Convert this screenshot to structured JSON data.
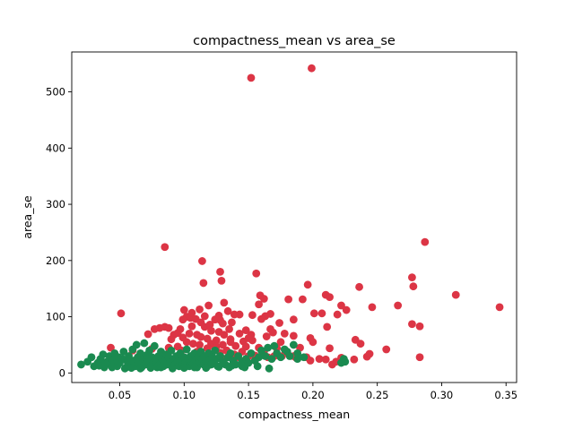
{
  "chart_data": {
    "type": "scatter",
    "title": "compactness_mean vs area_se",
    "xlabel": "compactness_mean",
    "ylabel": "area_se",
    "xlim": [
      0.0127,
      0.3582
    ],
    "ylim": [
      -17,
      571
    ],
    "xticks": [
      0.05,
      0.1,
      0.15,
      0.2,
      0.25,
      0.3,
      0.35
    ],
    "xtick_labels": [
      "0.05",
      "0.10",
      "0.15",
      "0.20",
      "0.25",
      "0.30",
      "0.35"
    ],
    "yticks": [
      0,
      100,
      200,
      300,
      400,
      500
    ],
    "ytick_labels": [
      "0",
      "100",
      "200",
      "300",
      "400",
      "500"
    ],
    "grid": false,
    "legend": false,
    "series": [
      {
        "color": "#dc3545",
        "points": [
          [
            0.199,
            542
          ],
          [
            0.152,
            525
          ],
          [
            0.287,
            233
          ],
          [
            0.085,
            224
          ],
          [
            0.114,
            199
          ],
          [
            0.128,
            180
          ],
          [
            0.156,
            177
          ],
          [
            0.277,
            170
          ],
          [
            0.129,
            164
          ],
          [
            0.115,
            160
          ],
          [
            0.196,
            157
          ],
          [
            0.278,
            154
          ],
          [
            0.236,
            153
          ],
          [
            0.311,
            139
          ],
          [
            0.21,
            139
          ],
          [
            0.159,
            138
          ],
          [
            0.213,
            135
          ],
          [
            0.192,
            131
          ],
          [
            0.181,
            131
          ],
          [
            0.162,
            132
          ],
          [
            0.119,
            120
          ],
          [
            0.131,
            125
          ],
          [
            0.158,
            122
          ],
          [
            0.222,
            120
          ],
          [
            0.266,
            120
          ],
          [
            0.345,
            117
          ],
          [
            0.246,
            117
          ],
          [
            0.226,
            112
          ],
          [
            0.1,
            112
          ],
          [
            0.112,
            113
          ],
          [
            0.134,
            110
          ],
          [
            0.143,
            104
          ],
          [
            0.139,
            104
          ],
          [
            0.167,
            105
          ],
          [
            0.051,
            106
          ],
          [
            0.201,
            106
          ],
          [
            0.207,
            106
          ],
          [
            0.219,
            104
          ],
          [
            0.153,
            103
          ],
          [
            0.127,
            102
          ],
          [
            0.116,
            101
          ],
          [
            0.163,
            101
          ],
          [
            0.102,
            100
          ],
          [
            0.105,
            98
          ],
          [
            0.109,
            96
          ],
          [
            0.099,
            95
          ],
          [
            0.124,
            95
          ],
          [
            0.128,
            94
          ],
          [
            0.137,
            90
          ],
          [
            0.16,
            96
          ],
          [
            0.185,
            95
          ],
          [
            0.277,
            87
          ],
          [
            0.283,
            83
          ],
          [
            0.211,
            82
          ],
          [
            0.174,
            89
          ],
          [
            0.081,
            80
          ],
          [
            0.085,
            82
          ],
          [
            0.088,
            80
          ],
          [
            0.077,
            78
          ],
          [
            0.097,
            78
          ],
          [
            0.106,
            83
          ],
          [
            0.116,
            82
          ],
          [
            0.135,
            78
          ],
          [
            0.148,
            76
          ],
          [
            0.167,
            78
          ],
          [
            0.121,
            75
          ],
          [
            0.127,
            73
          ],
          [
            0.095,
            71
          ],
          [
            0.104,
            70
          ],
          [
            0.11,
            68
          ],
          [
            0.072,
            69
          ],
          [
            0.092,
            68
          ],
          [
            0.131,
            68
          ],
          [
            0.143,
            70
          ],
          [
            0.152,
            68
          ],
          [
            0.169,
            72
          ],
          [
            0.178,
            70
          ],
          [
            0.185,
            66
          ],
          [
            0.164,
            65
          ],
          [
            0.198,
            62
          ],
          [
            0.233,
            59
          ],
          [
            0.113,
            64
          ],
          [
            0.118,
            61
          ],
          [
            0.136,
            60
          ],
          [
            0.125,
            58
          ],
          [
            0.146,
            56
          ],
          [
            0.153,
            58
          ],
          [
            0.175,
            55
          ],
          [
            0.2,
            55
          ],
          [
            0.237,
            52
          ],
          [
            0.102,
            55
          ],
          [
            0.107,
            52
          ],
          [
            0.112,
            50
          ],
          [
            0.121,
            52
          ],
          [
            0.13,
            50
          ],
          [
            0.14,
            48
          ],
          [
            0.148,
            47
          ],
          [
            0.158,
            45
          ],
          [
            0.172,
            44
          ],
          [
            0.19,
            45
          ],
          [
            0.213,
            44
          ],
          [
            0.257,
            42
          ],
          [
            0.088,
            45
          ],
          [
            0.095,
            47
          ],
          [
            0.118,
            44
          ],
          [
            0.124,
            42
          ],
          [
            0.133,
            40
          ],
          [
            0.145,
            38
          ],
          [
            0.162,
            38
          ],
          [
            0.18,
            37
          ],
          [
            0.043,
            45
          ],
          [
            0.06,
            40
          ],
          [
            0.075,
            43
          ],
          [
            0.098,
            40
          ],
          [
            0.11,
            38
          ],
          [
            0.128,
            36
          ],
          [
            0.139,
            33
          ],
          [
            0.155,
            31
          ],
          [
            0.17,
            30
          ],
          [
            0.185,
            30
          ],
          [
            0.195,
            28
          ],
          [
            0.205,
            25
          ],
          [
            0.222,
            27
          ],
          [
            0.232,
            24
          ],
          [
            0.242,
            29
          ],
          [
            0.244,
            34
          ],
          [
            0.283,
            28
          ],
          [
            0.215,
            15
          ],
          [
            0.21,
            24
          ],
          [
            0.218,
            20
          ],
          [
            0.176,
            30
          ],
          [
            0.187,
            27
          ],
          [
            0.198,
            22
          ],
          [
            0.15,
            30
          ],
          [
            0.165,
            28
          ],
          [
            0.12,
            30
          ],
          [
            0.142,
            28
          ],
          [
            0.108,
            30
          ],
          [
            0.131,
            25
          ],
          [
            0.155,
            22
          ],
          [
            0.125,
            47
          ],
          [
            0.136,
            55
          ],
          [
            0.15,
            62
          ],
          [
            0.13,
            88
          ],
          [
            0.126,
            97
          ],
          [
            0.106,
            107
          ],
          [
            0.113,
            90
          ],
          [
            0.12,
            86
          ],
          [
            0.099,
            63
          ],
          [
            0.09,
            60
          ]
        ]
      },
      {
        "color": "#1a8a50",
        "points": [
          [
            0.02,
            15
          ],
          [
            0.025,
            20
          ],
          [
            0.028,
            28
          ],
          [
            0.03,
            12
          ],
          [
            0.033,
            18
          ],
          [
            0.035,
            25
          ],
          [
            0.037,
            33
          ],
          [
            0.038,
            10
          ],
          [
            0.04,
            20
          ],
          [
            0.042,
            30
          ],
          [
            0.043,
            15
          ],
          [
            0.045,
            22
          ],
          [
            0.046,
            35
          ],
          [
            0.048,
            12
          ],
          [
            0.049,
            28
          ],
          [
            0.05,
            18
          ],
          [
            0.052,
            25
          ],
          [
            0.053,
            38
          ],
          [
            0.055,
            10
          ],
          [
            0.056,
            20
          ],
          [
            0.057,
            30
          ],
          [
            0.058,
            15
          ],
          [
            0.06,
            42
          ],
          [
            0.061,
            22
          ],
          [
            0.062,
            12
          ],
          [
            0.063,
            50
          ],
          [
            0.064,
            28
          ],
          [
            0.065,
            18
          ],
          [
            0.066,
            35
          ],
          [
            0.067,
            10
          ],
          [
            0.068,
            25
          ],
          [
            0.069,
            53
          ],
          [
            0.07,
            15
          ],
          [
            0.071,
            32
          ],
          [
            0.072,
            20
          ],
          [
            0.073,
            40
          ],
          [
            0.074,
            12
          ],
          [
            0.075,
            28
          ],
          [
            0.076,
            18
          ],
          [
            0.077,
            48
          ],
          [
            0.078,
            22
          ],
          [
            0.079,
            10
          ],
          [
            0.08,
            30
          ],
          [
            0.081,
            15
          ],
          [
            0.082,
            38
          ],
          [
            0.083,
            25
          ],
          [
            0.084,
            12
          ],
          [
            0.085,
            20
          ],
          [
            0.086,
            33
          ],
          [
            0.087,
            15
          ],
          [
            0.088,
            28
          ],
          [
            0.089,
            18
          ],
          [
            0.09,
            40
          ],
          [
            0.091,
            10
          ],
          [
            0.092,
            25
          ],
          [
            0.093,
            15
          ],
          [
            0.094,
            30
          ],
          [
            0.095,
            20
          ],
          [
            0.096,
            12
          ],
          [
            0.097,
            35
          ],
          [
            0.098,
            22
          ],
          [
            0.099,
            15
          ],
          [
            0.1,
            28
          ],
          [
            0.101,
            18
          ],
          [
            0.102,
            42
          ],
          [
            0.103,
            25
          ],
          [
            0.104,
            12
          ],
          [
            0.105,
            30
          ],
          [
            0.106,
            20
          ],
          [
            0.107,
            15
          ],
          [
            0.108,
            35
          ],
          [
            0.109,
            22
          ],
          [
            0.11,
            10
          ],
          [
            0.111,
            28
          ],
          [
            0.112,
            18
          ],
          [
            0.113,
            38
          ],
          [
            0.114,
            25
          ],
          [
            0.115,
            15
          ],
          [
            0.116,
            30
          ],
          [
            0.117,
            20
          ],
          [
            0.118,
            12
          ],
          [
            0.119,
            35
          ],
          [
            0.12,
            22
          ],
          [
            0.121,
            15
          ],
          [
            0.122,
            28
          ],
          [
            0.123,
            18
          ],
          [
            0.124,
            40
          ],
          [
            0.125,
            25
          ],
          [
            0.126,
            12
          ],
          [
            0.128,
            30
          ],
          [
            0.13,
            20
          ],
          [
            0.132,
            15
          ],
          [
            0.134,
            28
          ],
          [
            0.136,
            35
          ],
          [
            0.138,
            22
          ],
          [
            0.14,
            15
          ],
          [
            0.142,
            30
          ],
          [
            0.145,
            20
          ],
          [
            0.148,
            25
          ],
          [
            0.15,
            18
          ],
          [
            0.152,
            35
          ],
          [
            0.155,
            22
          ],
          [
            0.158,
            28
          ],
          [
            0.16,
            40
          ],
          [
            0.163,
            30
          ],
          [
            0.165,
            45
          ],
          [
            0.168,
            25
          ],
          [
            0.17,
            48
          ],
          [
            0.172,
            35
          ],
          [
            0.175,
            28
          ],
          [
            0.178,
            42
          ],
          [
            0.18,
            38
          ],
          [
            0.182,
            30
          ],
          [
            0.185,
            50
          ],
          [
            0.188,
            25
          ],
          [
            0.166,
            8
          ],
          [
            0.145,
            12
          ],
          [
            0.135,
            10
          ],
          [
            0.188,
            35
          ],
          [
            0.193,
            28
          ],
          [
            0.222,
            18
          ],
          [
            0.224,
            25
          ],
          [
            0.225,
            20
          ],
          [
            0.044,
            10
          ],
          [
            0.054,
            8
          ],
          [
            0.059,
            9
          ],
          [
            0.066,
            8
          ],
          [
            0.074,
            9
          ],
          [
            0.082,
            10
          ],
          [
            0.091,
            8
          ],
          [
            0.1,
            9
          ],
          [
            0.108,
            10
          ],
          [
            0.117,
            9
          ],
          [
            0.127,
            11
          ],
          [
            0.137,
            13
          ],
          [
            0.147,
            10
          ],
          [
            0.157,
            12
          ],
          [
            0.034,
            13
          ],
          [
            0.039,
            17
          ],
          [
            0.047,
            27
          ]
        ]
      }
    ]
  }
}
